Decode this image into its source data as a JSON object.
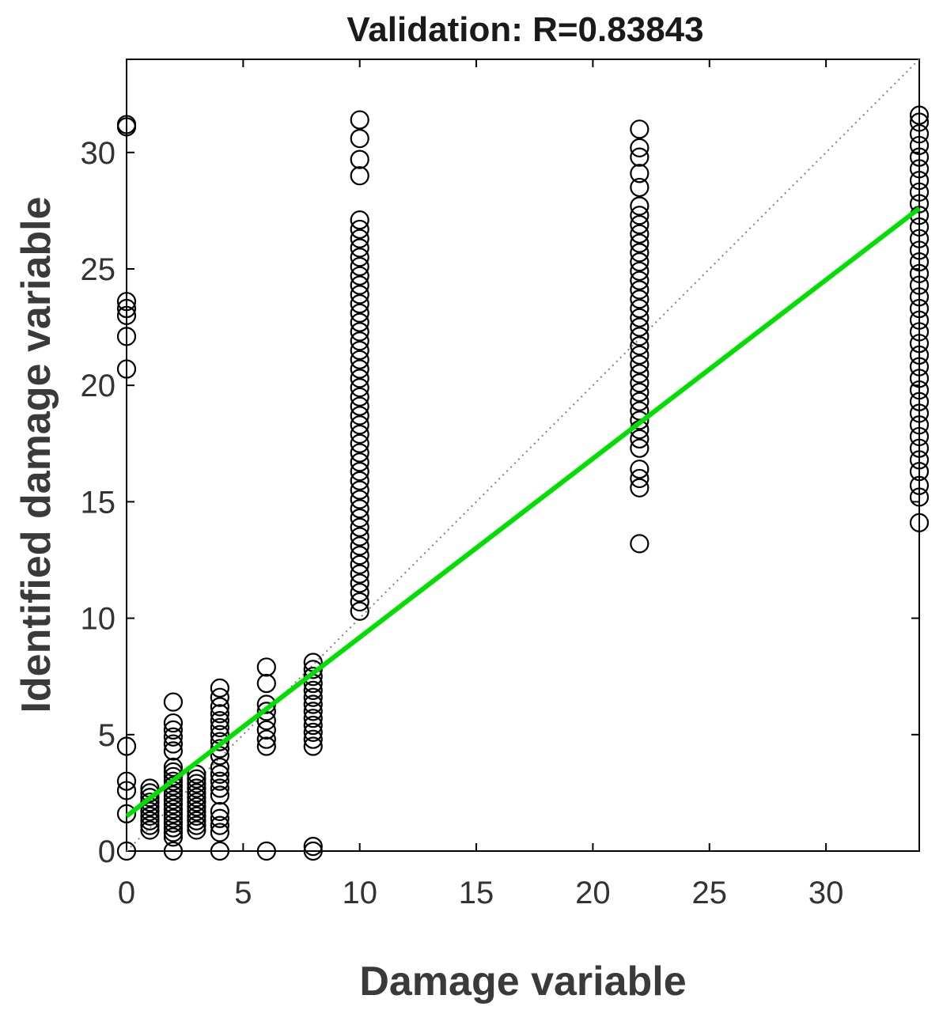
{
  "chart_data": {
    "type": "scatter",
    "title": "Validation: R=0.83843",
    "xlabel": "Damage variable",
    "ylabel": "Identified damage variable",
    "xlim": [
      0,
      34
    ],
    "ylim": [
      0,
      34
    ],
    "x_ticks": [
      0,
      5,
      10,
      15,
      20,
      25,
      30
    ],
    "y_ticks": [
      0,
      5,
      10,
      15,
      20,
      25,
      30
    ],
    "grid": false,
    "legend": "none",
    "colors": {
      "points": "#000000",
      "fit": "#00e000",
      "identity": "#808080"
    },
    "fit_line": {
      "x": [
        0,
        34
      ],
      "y": [
        1.5,
        27.6
      ]
    },
    "identity_line": {
      "x": [
        0,
        34
      ],
      "y": [
        0,
        34
      ]
    },
    "series": [
      {
        "marker": "circle-open",
        "points": [
          [
            0,
            0
          ],
          [
            0,
            1.6
          ],
          [
            0,
            2.6
          ],
          [
            0,
            3.0
          ],
          [
            0,
            4.5
          ],
          [
            0,
            20.7
          ],
          [
            0,
            22.1
          ],
          [
            0,
            23.0
          ],
          [
            0,
            23.3
          ],
          [
            0,
            23.6
          ],
          [
            0,
            31.1
          ],
          [
            0,
            31.2
          ],
          [
            1,
            0.9
          ],
          [
            1,
            1.1
          ],
          [
            1,
            1.3
          ],
          [
            1,
            1.5
          ],
          [
            1,
            1.7
          ],
          [
            1,
            1.9
          ],
          [
            1,
            2.1
          ],
          [
            1,
            2.3
          ],
          [
            1,
            2.5
          ],
          [
            1,
            2.7
          ],
          [
            2,
            0.0
          ],
          [
            2,
            0.6
          ],
          [
            2,
            0.8
          ],
          [
            2,
            1.0
          ],
          [
            2,
            1.2
          ],
          [
            2,
            1.4
          ],
          [
            2,
            1.6
          ],
          [
            2,
            1.8
          ],
          [
            2,
            2.0
          ],
          [
            2,
            2.2
          ],
          [
            2,
            2.4
          ],
          [
            2,
            2.6
          ],
          [
            2,
            2.8
          ],
          [
            2,
            3.0
          ],
          [
            2,
            3.2
          ],
          [
            2,
            3.4
          ],
          [
            2,
            3.6
          ],
          [
            2,
            4.3
          ],
          [
            2,
            4.6
          ],
          [
            2,
            4.9
          ],
          [
            2,
            5.2
          ],
          [
            2,
            5.5
          ],
          [
            2,
            6.4
          ],
          [
            3,
            0.9
          ],
          [
            3,
            1.1
          ],
          [
            3,
            1.3
          ],
          [
            3,
            1.5
          ],
          [
            3,
            1.7
          ],
          [
            3,
            1.9
          ],
          [
            3,
            2.1
          ],
          [
            3,
            2.3
          ],
          [
            3,
            2.5
          ],
          [
            3,
            2.7
          ],
          [
            3,
            2.9
          ],
          [
            3,
            3.1
          ],
          [
            3,
            3.3
          ],
          [
            4,
            0.0
          ],
          [
            4,
            0.8
          ],
          [
            4,
            1.1
          ],
          [
            4,
            1.4
          ],
          [
            4,
            1.7
          ],
          [
            4,
            2.4
          ],
          [
            4,
            2.7
          ],
          [
            4,
            3.0
          ],
          [
            4,
            3.3
          ],
          [
            4,
            3.6
          ],
          [
            4,
            4.1
          ],
          [
            4,
            4.4
          ],
          [
            4,
            4.7
          ],
          [
            4,
            5.0
          ],
          [
            4,
            5.3
          ],
          [
            4,
            5.6
          ],
          [
            4,
            5.9
          ],
          [
            4,
            6.2
          ],
          [
            4,
            6.6
          ],
          [
            4,
            7.0
          ],
          [
            6,
            0.0
          ],
          [
            6,
            4.5
          ],
          [
            6,
            4.8
          ],
          [
            6,
            5.2
          ],
          [
            6,
            5.6
          ],
          [
            6,
            6.0
          ],
          [
            6,
            6.3
          ],
          [
            6,
            7.2
          ],
          [
            6,
            7.9
          ],
          [
            8,
            0.0
          ],
          [
            8,
            0.2
          ],
          [
            8,
            4.5
          ],
          [
            8,
            4.8
          ],
          [
            8,
            5.1
          ],
          [
            8,
            5.4
          ],
          [
            8,
            5.7
          ],
          [
            8,
            6.0
          ],
          [
            8,
            6.3
          ],
          [
            8,
            6.6
          ],
          [
            8,
            6.9
          ],
          [
            8,
            7.2
          ],
          [
            8,
            7.5
          ],
          [
            8,
            7.8
          ],
          [
            8,
            8.1
          ],
          [
            10,
            10.3
          ],
          [
            10,
            10.7
          ],
          [
            10,
            11.1
          ],
          [
            10,
            11.5
          ],
          [
            10,
            11.9
          ],
          [
            10,
            12.3
          ],
          [
            10,
            12.7
          ],
          [
            10,
            13.1
          ],
          [
            10,
            13.5
          ],
          [
            10,
            13.9
          ],
          [
            10,
            14.3
          ],
          [
            10,
            14.7
          ],
          [
            10,
            15.1
          ],
          [
            10,
            15.5
          ],
          [
            10,
            15.9
          ],
          [
            10,
            16.3
          ],
          [
            10,
            16.7
          ],
          [
            10,
            17.1
          ],
          [
            10,
            17.5
          ],
          [
            10,
            17.9
          ],
          [
            10,
            18.3
          ],
          [
            10,
            18.7
          ],
          [
            10,
            19.1
          ],
          [
            10,
            19.5
          ],
          [
            10,
            19.9
          ],
          [
            10,
            20.3
          ],
          [
            10,
            20.7
          ],
          [
            10,
            21.1
          ],
          [
            10,
            21.5
          ],
          [
            10,
            21.9
          ],
          [
            10,
            22.3
          ],
          [
            10,
            22.7
          ],
          [
            10,
            23.1
          ],
          [
            10,
            23.5
          ],
          [
            10,
            23.9
          ],
          [
            10,
            24.3
          ],
          [
            10,
            24.7
          ],
          [
            10,
            25.1
          ],
          [
            10,
            25.5
          ],
          [
            10,
            25.9
          ],
          [
            10,
            26.3
          ],
          [
            10,
            26.7
          ],
          [
            10,
            27.1
          ],
          [
            10,
            29.0
          ],
          [
            10,
            29.7
          ],
          [
            10,
            30.6
          ],
          [
            10,
            31.4
          ],
          [
            22,
            13.2
          ],
          [
            22,
            15.6
          ],
          [
            22,
            16.0
          ],
          [
            22,
            16.4
          ],
          [
            22,
            17.3
          ],
          [
            22,
            17.7
          ],
          [
            22,
            18.1
          ],
          [
            22,
            18.5
          ],
          [
            22,
            18.9
          ],
          [
            22,
            19.3
          ],
          [
            22,
            19.7
          ],
          [
            22,
            20.1
          ],
          [
            22,
            20.5
          ],
          [
            22,
            20.9
          ],
          [
            22,
            21.3
          ],
          [
            22,
            21.7
          ],
          [
            22,
            22.1
          ],
          [
            22,
            22.5
          ],
          [
            22,
            22.9
          ],
          [
            22,
            23.3
          ],
          [
            22,
            23.7
          ],
          [
            22,
            24.1
          ],
          [
            22,
            24.5
          ],
          [
            22,
            24.9
          ],
          [
            22,
            25.3
          ],
          [
            22,
            25.7
          ],
          [
            22,
            26.1
          ],
          [
            22,
            26.5
          ],
          [
            22,
            26.9
          ],
          [
            22,
            27.3
          ],
          [
            22,
            27.7
          ],
          [
            22,
            28.5
          ],
          [
            22,
            29.1
          ],
          [
            22,
            29.8
          ],
          [
            22,
            30.2
          ],
          [
            22,
            31.0
          ],
          [
            34,
            14.1
          ],
          [
            34,
            15.2
          ],
          [
            34,
            15.7
          ],
          [
            34,
            16.3
          ],
          [
            34,
            16.8
          ],
          [
            34,
            17.3
          ],
          [
            34,
            17.8
          ],
          [
            34,
            18.3
          ],
          [
            34,
            18.8
          ],
          [
            34,
            19.3
          ],
          [
            34,
            19.8
          ],
          [
            34,
            20.3
          ],
          [
            34,
            20.8
          ],
          [
            34,
            21.3
          ],
          [
            34,
            21.8
          ],
          [
            34,
            22.3
          ],
          [
            34,
            22.8
          ],
          [
            34,
            23.3
          ],
          [
            34,
            23.8
          ],
          [
            34,
            24.3
          ],
          [
            34,
            24.8
          ],
          [
            34,
            25.3
          ],
          [
            34,
            25.8
          ],
          [
            34,
            26.3
          ],
          [
            34,
            26.8
          ],
          [
            34,
            27.3
          ],
          [
            34,
            27.8
          ],
          [
            34,
            28.3
          ],
          [
            34,
            28.8
          ],
          [
            34,
            29.3
          ],
          [
            34,
            29.8
          ],
          [
            34,
            30.3
          ],
          [
            34,
            30.8
          ],
          [
            34,
            31.3
          ],
          [
            34,
            31.6
          ]
        ]
      }
    ]
  }
}
